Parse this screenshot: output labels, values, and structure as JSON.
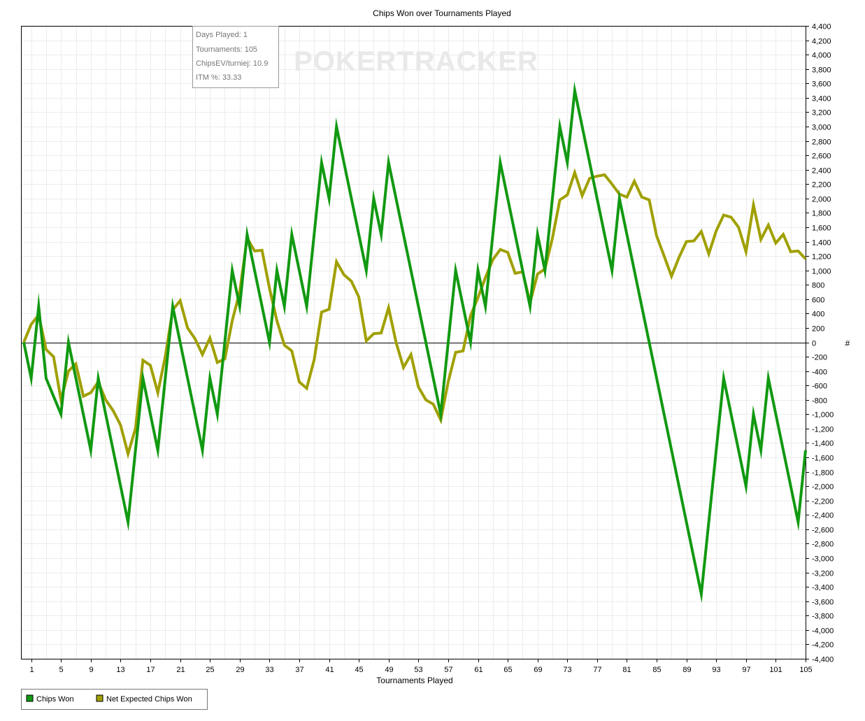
{
  "chart_data": {
    "type": "line",
    "title": "Chips Won over Tournaments Played",
    "xlabel": "Tournaments Played",
    "ylabel": "#",
    "xlim": [
      0,
      105
    ],
    "ylim": [
      -4400,
      4400
    ],
    "x_ticks": [
      1,
      5,
      9,
      13,
      17,
      21,
      25,
      29,
      33,
      37,
      41,
      45,
      49,
      53,
      57,
      61,
      65,
      69,
      73,
      77,
      81,
      85,
      89,
      93,
      97,
      101,
      105
    ],
    "y_ticks": [
      4400,
      4200,
      4000,
      3800,
      3600,
      3400,
      3200,
      3000,
      2800,
      2600,
      2400,
      2200,
      2000,
      1800,
      1600,
      1400,
      1200,
      1000,
      800,
      600,
      400,
      200,
      0,
      -200,
      -400,
      -600,
      -800,
      -1000,
      -1200,
      -1400,
      -1600,
      -1800,
      -2000,
      -2200,
      -2400,
      -2600,
      -2800,
      -3000,
      -3200,
      -3400,
      -3600,
      -3800,
      -4000,
      -4200,
      -4400
    ],
    "grid": true,
    "legend_position": "bottom-left",
    "watermark": "POKERTRACKER",
    "info_box": [
      "Days Played: 1",
      "Tournaments: 105",
      "ChipsEV/turniej: 10.9",
      "ITM %: 33.33"
    ],
    "series": [
      {
        "name": "Chips Won",
        "color": "#119911",
        "points": [
          [
            0,
            0
          ],
          [
            1,
            -500
          ],
          [
            2,
            500
          ],
          [
            3,
            -500
          ],
          [
            5,
            -1000
          ],
          [
            6,
            0
          ],
          [
            9,
            -1500
          ],
          [
            10,
            -500
          ],
          [
            14,
            -2500
          ],
          [
            16,
            -500
          ],
          [
            18,
            -1500
          ],
          [
            20,
            500
          ],
          [
            24,
            -1500
          ],
          [
            25,
            -500
          ],
          [
            26,
            -1000
          ],
          [
            28,
            1000
          ],
          [
            29,
            500
          ],
          [
            30,
            1500
          ],
          [
            33,
            0
          ],
          [
            34,
            1000
          ],
          [
            35,
            500
          ],
          [
            36,
            1500
          ],
          [
            38,
            500
          ],
          [
            40,
            2500
          ],
          [
            41,
            2000
          ],
          [
            42,
            3000
          ],
          [
            46,
            1000
          ],
          [
            47,
            2000
          ],
          [
            48,
            1500
          ],
          [
            49,
            2500
          ],
          [
            56,
            -1000
          ],
          [
            58,
            1000
          ],
          [
            60,
            0
          ],
          [
            61,
            1000
          ],
          [
            62,
            500
          ],
          [
            64,
            2500
          ],
          [
            68,
            500
          ],
          [
            69,
            1500
          ],
          [
            70,
            1000
          ],
          [
            72,
            3000
          ],
          [
            73,
            2500
          ],
          [
            74,
            3500
          ],
          [
            79,
            1000
          ],
          [
            80,
            2000
          ],
          [
            91,
            -3500
          ],
          [
            94,
            -500
          ],
          [
            97,
            -2000
          ],
          [
            98,
            -1000
          ],
          [
            99,
            -1500
          ],
          [
            100,
            -500
          ],
          [
            104,
            -2500
          ],
          [
            105,
            -1500
          ]
        ]
      },
      {
        "name": "Net Expected Chips Won",
        "color": "#a0a000",
        "points": [
          [
            0,
            0
          ],
          [
            1,
            250
          ],
          [
            2,
            380
          ],
          [
            3,
            -100
          ],
          [
            4,
            -200
          ],
          [
            5,
            -800
          ],
          [
            6,
            -400
          ],
          [
            7,
            -300
          ],
          [
            8,
            -750
          ],
          [
            9,
            -700
          ],
          [
            10,
            -550
          ],
          [
            11,
            -800
          ],
          [
            12,
            -950
          ],
          [
            13,
            -1150
          ],
          [
            14,
            -1550
          ],
          [
            15,
            -1200
          ],
          [
            16,
            -250
          ],
          [
            17,
            -320
          ],
          [
            18,
            -700
          ],
          [
            19,
            -200
          ],
          [
            20,
            450
          ],
          [
            21,
            580
          ],
          [
            22,
            200
          ],
          [
            23,
            50
          ],
          [
            24,
            -170
          ],
          [
            25,
            60
          ],
          [
            26,
            -280
          ],
          [
            27,
            -230
          ],
          [
            28,
            300
          ],
          [
            29,
            700
          ],
          [
            30,
            1450
          ],
          [
            31,
            1270
          ],
          [
            32,
            1280
          ],
          [
            33,
            750
          ],
          [
            34,
            300
          ],
          [
            35,
            -40
          ],
          [
            36,
            -120
          ],
          [
            37,
            -550
          ],
          [
            38,
            -640
          ],
          [
            39,
            -240
          ],
          [
            40,
            420
          ],
          [
            41,
            460
          ],
          [
            42,
            1120
          ],
          [
            43,
            940
          ],
          [
            44,
            850
          ],
          [
            45,
            630
          ],
          [
            46,
            20
          ],
          [
            47,
            120
          ],
          [
            48,
            130
          ],
          [
            49,
            480
          ],
          [
            50,
            0
          ],
          [
            51,
            -350
          ],
          [
            52,
            -170
          ],
          [
            53,
            -620
          ],
          [
            54,
            -800
          ],
          [
            55,
            -860
          ],
          [
            56,
            -1080
          ],
          [
            57,
            -550
          ],
          [
            58,
            -140
          ],
          [
            59,
            -120
          ],
          [
            60,
            370
          ],
          [
            61,
            620
          ],
          [
            62,
            900
          ],
          [
            63,
            1150
          ],
          [
            64,
            1290
          ],
          [
            65,
            1250
          ],
          [
            66,
            960
          ],
          [
            67,
            980
          ],
          [
            68,
            550
          ],
          [
            69,
            950
          ],
          [
            70,
            1020
          ],
          [
            71,
            1450
          ],
          [
            72,
            1980
          ],
          [
            73,
            2050
          ],
          [
            74,
            2360
          ],
          [
            75,
            2040
          ],
          [
            76,
            2280
          ],
          [
            77,
            2310
          ],
          [
            78,
            2330
          ],
          [
            79,
            2200
          ],
          [
            80,
            2060
          ],
          [
            81,
            2020
          ],
          [
            82,
            2240
          ],
          [
            83,
            2020
          ],
          [
            84,
            1980
          ],
          [
            85,
            1480
          ],
          [
            86,
            1200
          ],
          [
            87,
            920
          ],
          [
            88,
            1180
          ],
          [
            89,
            1400
          ],
          [
            90,
            1410
          ],
          [
            91,
            1540
          ],
          [
            92,
            1230
          ],
          [
            93,
            1550
          ],
          [
            94,
            1770
          ],
          [
            95,
            1740
          ],
          [
            96,
            1600
          ],
          [
            97,
            1260
          ],
          [
            98,
            1910
          ],
          [
            99,
            1430
          ],
          [
            100,
            1630
          ],
          [
            101,
            1380
          ],
          [
            102,
            1500
          ],
          [
            103,
            1260
          ],
          [
            104,
            1270
          ],
          [
            105,
            1160
          ]
        ]
      }
    ]
  }
}
